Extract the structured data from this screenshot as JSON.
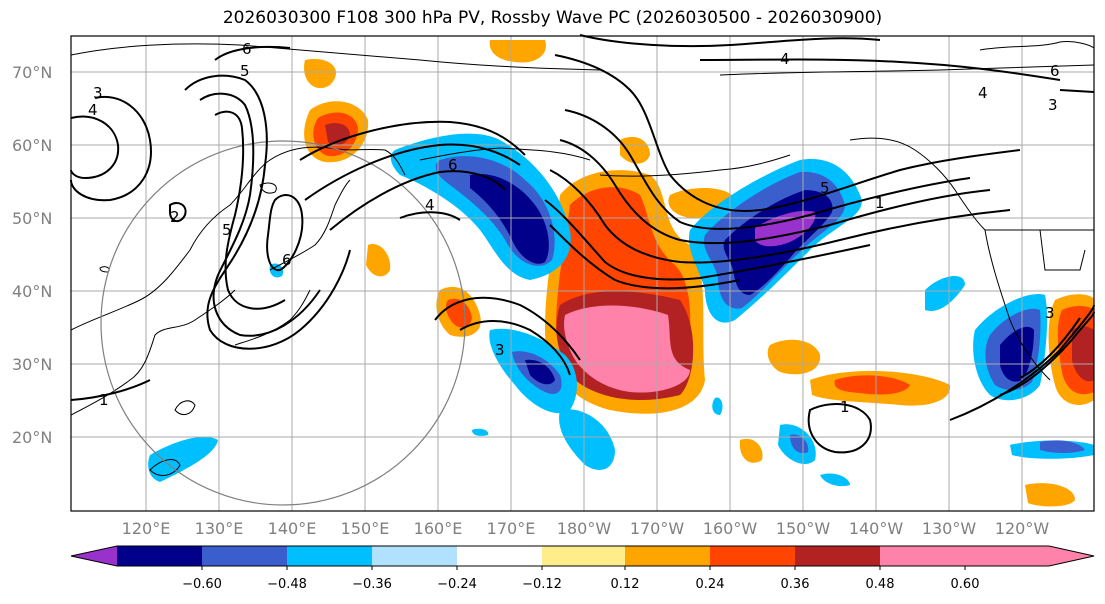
{
  "title": "2026030300 F108 300 hPa PV, Rossby Wave PC (2026030500 - 2026030900)",
  "lat_labels": [
    "70°N",
    "60°N",
    "50°N",
    "40°N",
    "30°N",
    "20°N"
  ],
  "lon_labels": [
    "120°E",
    "130°E",
    "140°E",
    "150°E",
    "160°E",
    "170°E",
    "180°W",
    "170°W",
    "160°W",
    "150°W",
    "140°W",
    "130°W",
    "120°W"
  ],
  "contour_labels": [
    "6",
    "5",
    "4",
    "3",
    "1",
    "6",
    "5",
    "4",
    "2",
    "1",
    "3",
    "6",
    "5",
    "4",
    "3",
    "1",
    "4",
    "6",
    "3"
  ],
  "colorbar": {
    "ticks": [
      "−0.60",
      "−0.48",
      "−0.36",
      "−0.24",
      "−0.12",
      "0.12",
      "0.24",
      "0.36",
      "0.48",
      "0.60"
    ],
    "colors": [
      "#9932cc",
      "#00008b",
      "#3a5fcd",
      "#00bfff",
      "#b0e2ff",
      "#ffffff",
      "#ffec8b",
      "#ffa500",
      "#ff4500",
      "#b22222",
      "#ff82ab"
    ]
  }
}
